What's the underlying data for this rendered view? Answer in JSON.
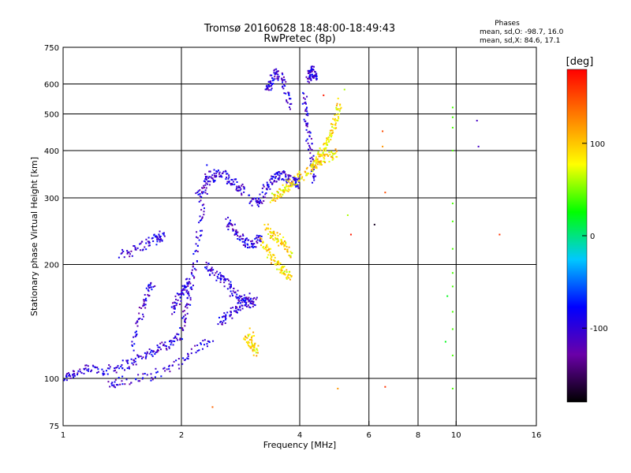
{
  "chart_data": {
    "type": "scatter",
    "title": "Tromsø 20160628 18:48:00-18:49:43",
    "subtitle": "RwPretec (8p)",
    "xlabel": "Frequency [MHz]",
    "ylabel": "Stationary phase Virtual Height [km]",
    "x_scale": "log",
    "y_scale": "log",
    "xlim": [
      1,
      16
    ],
    "ylim": [
      75,
      750
    ],
    "x_ticks": [
      1,
      2,
      4,
      6,
      8,
      10,
      16
    ],
    "y_ticks": [
      75,
      100,
      200,
      300,
      400,
      500,
      600,
      750
    ],
    "x_gridlines": [
      2,
      4,
      6,
      8,
      10
    ],
    "y_gridlines": [
      100,
      200,
      300,
      400,
      500,
      600
    ],
    "grid": true,
    "phase_info": {
      "heading": "Phases",
      "line_o": "mean, sd,O: -98.7, 16.0",
      "line_x": "mean, sd,X:  84.6, 17.1"
    },
    "colorbar": {
      "label": "[deg]",
      "range": [
        -180,
        180
      ],
      "ticks": [
        100,
        0,
        -100
      ],
      "colors": [
        "#000000",
        "#6a00a8",
        "#0000ff",
        "#00c8ff",
        "#00ff00",
        "#ffff00",
        "#ff8000",
        "#ff0000"
      ]
    },
    "series": [
      {
        "mode": "O",
        "phase_deg": -100,
        "traces": [
          [
            [
              1.0,
              100
            ],
            [
              1.05,
              103
            ],
            [
              1.12,
              105
            ],
            [
              1.2,
              106
            ],
            [
              1.3,
              105
            ],
            [
              1.4,
              108
            ],
            [
              1.5,
              110
            ],
            [
              1.6,
              115
            ],
            [
              1.7,
              118
            ],
            [
              1.8,
              122
            ],
            [
              1.9,
              125
            ],
            [
              2.0,
              130
            ]
          ],
          [
            [
              1.4,
              210
            ],
            [
              1.5,
              218
            ],
            [
              1.6,
              225
            ],
            [
              1.7,
              232
            ],
            [
              1.75,
              236
            ],
            [
              1.8,
              240
            ]
          ],
          [
            [
              1.5,
              120
            ],
            [
              1.55,
              140
            ],
            [
              1.6,
              155
            ],
            [
              1.65,
              170
            ],
            [
              1.7,
              180
            ]
          ],
          [
            [
              1.9,
              150
            ],
            [
              1.95,
              160
            ],
            [
              2.0,
              168
            ],
            [
              2.05,
              175
            ],
            [
              2.1,
              180
            ]
          ],
          [
            [
              2.0,
              135
            ],
            [
              2.05,
              150
            ],
            [
              2.1,
              165
            ],
            [
              2.15,
              190
            ],
            [
              2.2,
              230
            ],
            [
              2.25,
              270
            ],
            [
              2.3,
              320
            ],
            [
              2.35,
              360
            ]
          ],
          [
            [
              2.3,
              200
            ],
            [
              2.4,
              190
            ],
            [
              2.5,
              185
            ],
            [
              2.6,
              180
            ],
            [
              2.7,
              170
            ],
            [
              2.8,
              165
            ],
            [
              2.9,
              160
            ],
            [
              3.0,
              158
            ],
            [
              3.1,
              160
            ]
          ],
          [
            [
              2.2,
              300
            ],
            [
              2.3,
              330
            ],
            [
              2.4,
              340
            ],
            [
              2.5,
              350
            ],
            [
              2.6,
              340
            ],
            [
              2.7,
              330
            ],
            [
              2.8,
              320
            ],
            [
              2.9,
              310
            ]
          ],
          [
            [
              3.0,
              300
            ],
            [
              3.1,
              290
            ],
            [
              3.2,
              300
            ],
            [
              3.3,
              320
            ],
            [
              3.4,
              335
            ],
            [
              3.5,
              340
            ],
            [
              3.6,
              345
            ],
            [
              3.7,
              340
            ],
            [
              3.8,
              335
            ],
            [
              3.9,
              330
            ],
            [
              4.0,
              325
            ]
          ],
          [
            [
              3.3,
              570
            ],
            [
              3.35,
              600
            ],
            [
              3.4,
              620
            ],
            [
              3.5,
              640
            ],
            [
              3.6,
              620
            ],
            [
              3.7,
              560
            ],
            [
              3.8,
              520
            ]
          ],
          [
            [
              4.1,
              560
            ],
            [
              4.15,
              500
            ],
            [
              4.2,
              450
            ],
            [
              4.25,
              400
            ],
            [
              4.3,
              360
            ],
            [
              4.35,
              330
            ]
          ],
          [
            [
              4.2,
              620
            ],
            [
              4.25,
              640
            ],
            [
              4.3,
              650
            ],
            [
              4.35,
              640
            ],
            [
              4.4,
              620
            ]
          ],
          [
            [
              2.6,
              260
            ],
            [
              2.7,
              250
            ],
            [
              2.8,
              240
            ],
            [
              2.9,
              230
            ],
            [
              3.0,
              225
            ],
            [
              3.1,
              230
            ],
            [
              3.2,
              235
            ]
          ],
          [
            [
              2.5,
              140
            ],
            [
              2.6,
              145
            ],
            [
              2.7,
              150
            ],
            [
              2.8,
              155
            ],
            [
              2.9,
              160
            ],
            [
              3.0,
              165
            ]
          ],
          [
            [
              1.3,
              95
            ],
            [
              1.4,
              98
            ],
            [
              1.6,
              100
            ],
            [
              1.8,
              105
            ],
            [
              2.0,
              110
            ],
            [
              2.2,
              120
            ],
            [
              2.4,
              130
            ]
          ]
        ]
      },
      {
        "mode": "X",
        "phase_deg": 90,
        "traces": [
          [
            [
              3.4,
              300
            ],
            [
              3.5,
              305
            ],
            [
              3.6,
              310
            ],
            [
              3.7,
              320
            ],
            [
              3.8,
              330
            ],
            [
              4.0,
              340
            ],
            [
              4.2,
              355
            ],
            [
              4.4,
              370
            ],
            [
              4.6,
              380
            ],
            [
              4.8,
              390
            ],
            [
              5.0,
              400
            ]
          ],
          [
            [
              4.3,
              360
            ],
            [
              4.4,
              370
            ],
            [
              4.5,
              385
            ],
            [
              4.6,
              400
            ],
            [
              4.7,
              420
            ],
            [
              4.8,
              440
            ],
            [
              4.9,
              470
            ],
            [
              5.0,
              500
            ],
            [
              5.05,
              540
            ]
          ],
          [
            [
              3.2,
              230
            ],
            [
              3.3,
              220
            ],
            [
              3.4,
              210
            ],
            [
              3.5,
              200
            ],
            [
              3.6,
              195
            ],
            [
              3.7,
              190
            ],
            [
              3.8,
              185
            ]
          ],
          [
            [
              3.3,
              250
            ],
            [
              3.4,
              240
            ],
            [
              3.5,
              235
            ],
            [
              3.6,
              230
            ],
            [
              3.7,
              220
            ],
            [
              3.8,
              210
            ]
          ],
          [
            [
              2.9,
              130
            ],
            [
              3.0,
              125
            ],
            [
              3.05,
              120
            ],
            [
              3.1,
              118
            ],
            [
              3.0,
              135
            ]
          ]
        ]
      }
    ],
    "isolated_points": [
      {
        "x": 6.5,
        "y": 450,
        "phase_deg": 150
      },
      {
        "x": 6.6,
        "y": 310,
        "phase_deg": 150
      },
      {
        "x": 6.5,
        "y": 410,
        "phase_deg": 120
      },
      {
        "x": 5.4,
        "y": 240,
        "phase_deg": 170
      },
      {
        "x": 6.2,
        "y": 255,
        "phase_deg": -170
      },
      {
        "x": 9.8,
        "y": 520,
        "phase_deg": 40
      },
      {
        "x": 9.8,
        "y": 490,
        "phase_deg": 40
      },
      {
        "x": 9.8,
        "y": 460,
        "phase_deg": 40
      },
      {
        "x": 9.8,
        "y": 400,
        "phase_deg": 40
      },
      {
        "x": 9.8,
        "y": 290,
        "phase_deg": 40
      },
      {
        "x": 9.8,
        "y": 260,
        "phase_deg": 40
      },
      {
        "x": 9.8,
        "y": 220,
        "phase_deg": 40
      },
      {
        "x": 9.8,
        "y": 190,
        "phase_deg": 40
      },
      {
        "x": 9.8,
        "y": 175,
        "phase_deg": 40
      },
      {
        "x": 9.8,
        "y": 150,
        "phase_deg": 40
      },
      {
        "x": 9.8,
        "y": 135,
        "phase_deg": 40
      },
      {
        "x": 9.8,
        "y": 115,
        "phase_deg": 40
      },
      {
        "x": 9.8,
        "y": 94,
        "phase_deg": 40
      },
      {
        "x": 9.5,
        "y": 165,
        "phase_deg": 20
      },
      {
        "x": 9.4,
        "y": 125,
        "phase_deg": 20
      },
      {
        "x": 11.3,
        "y": 480,
        "phase_deg": -110
      },
      {
        "x": 11.4,
        "y": 410,
        "phase_deg": -110
      },
      {
        "x": 12.9,
        "y": 240,
        "phase_deg": 160
      },
      {
        "x": 6.6,
        "y": 95,
        "phase_deg": 160
      },
      {
        "x": 5.0,
        "y": 94,
        "phase_deg": 120
      },
      {
        "x": 2.4,
        "y": 84,
        "phase_deg": 140
      },
      {
        "x": 5.3,
        "y": 270,
        "phase_deg": 60
      },
      {
        "x": 5.2,
        "y": 580,
        "phase_deg": 60
      },
      {
        "x": 4.6,
        "y": 560,
        "phase_deg": 170
      }
    ]
  }
}
